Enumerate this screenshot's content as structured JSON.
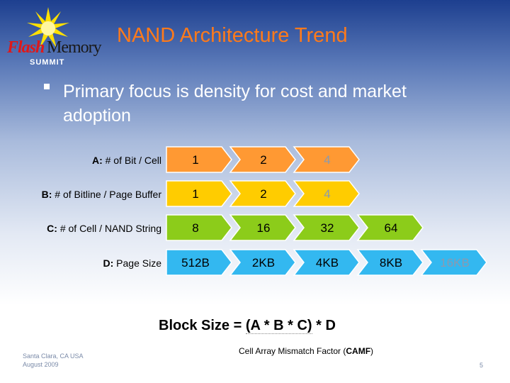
{
  "logo": {
    "flash": "Flash",
    "memory": "Memory",
    "summit": "SUMMIT"
  },
  "title": "NAND Architecture Trend",
  "bullet": "Primary focus is density for cost and market adoption",
  "rows": [
    {
      "key": "A:",
      "label": "# of Bit / Cell",
      "color": "#ff9933",
      "values": [
        "1",
        "2",
        "4"
      ],
      "faded": [
        false,
        false,
        true
      ]
    },
    {
      "key": "B:",
      "label": "# of Bitline / Page Buffer",
      "color": "#ffcc00",
      "values": [
        "1",
        "2",
        "4"
      ],
      "faded": [
        false,
        false,
        true
      ]
    },
    {
      "key": "C:",
      "label": "# of Cell / NAND String",
      "color": "#8ccc1a",
      "values": [
        "8",
        "16",
        "32",
        "64"
      ],
      "faded": [
        false,
        false,
        false,
        false
      ]
    },
    {
      "key": "D:",
      "label": "Page Size",
      "color": "#33b8f0",
      "values": [
        "512B",
        "2KB",
        "4KB",
        "8KB",
        "16KB"
      ],
      "faded": [
        false,
        false,
        false,
        false,
        true
      ]
    }
  ],
  "formula": {
    "prefix": "Block Size = ",
    "underlined": "(A * B * C)",
    "suffix": " * D"
  },
  "camf": {
    "text": "Cell Array Mismatch Factor (",
    "bold": "CAMF",
    "close": ")"
  },
  "footer": {
    "line1": "Santa Clara, CA  USA",
    "line2": "August 2009"
  },
  "page_number": "5",
  "colors": {
    "title": "#ff7a1a",
    "faded_text": "#8a9ab0"
  }
}
